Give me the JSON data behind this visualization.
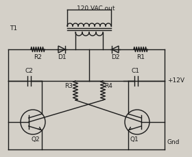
{
  "title": "120 VAC out",
  "label_T1": "T1",
  "label_R1": "R1",
  "label_R2": "R2",
  "label_R3": "R3",
  "label_R4": "R4",
  "label_D1": "D1",
  "label_D2": "D2",
  "label_C1": "C1",
  "label_C2": "C2",
  "label_Q1": "Q1",
  "label_Q2": "Q2",
  "label_plus12": "+12V",
  "label_gnd": "Gnd",
  "bg_color": "#d4d0c8",
  "line_color": "#1a1a1a",
  "font_size": 6.5,
  "lw": 1.0
}
